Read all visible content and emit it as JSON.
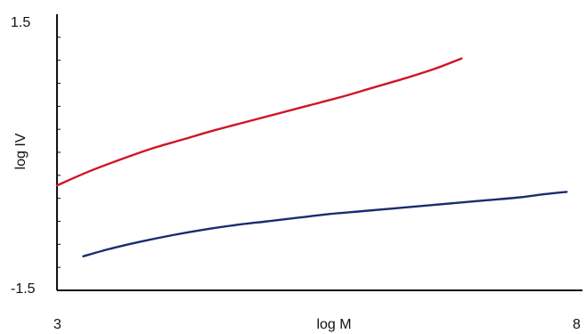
{
  "chart_data": {
    "type": "line",
    "xlabel": "log M",
    "ylabel": "log IV",
    "xlim": [
      3,
      8
    ],
    "ylim": [
      -1.5,
      1.5
    ],
    "tick_labels": {
      "x_min": "3",
      "x_max": "8",
      "y_min": "-1.5",
      "y_max": "1.5"
    },
    "y_minor_tick_step": 0.25,
    "grid": false,
    "series": [
      {
        "color": "#d01427",
        "x": [
          3.0,
          3.3,
          3.6,
          3.9,
          4.2,
          4.5,
          4.8,
          5.1,
          5.4,
          5.7,
          6.0,
          6.3,
          6.6,
          6.85
        ],
        "y": [
          -0.36,
          -0.21,
          -0.08,
          0.04,
          0.14,
          0.24,
          0.33,
          0.42,
          0.51,
          0.6,
          0.7,
          0.8,
          0.91,
          1.02
        ]
      },
      {
        "color": "#172d6e",
        "x": [
          3.25,
          3.5,
          3.8,
          4.1,
          4.4,
          4.7,
          5.0,
          5.3,
          5.6,
          5.9,
          6.2,
          6.5,
          6.8,
          7.1,
          7.4,
          7.6,
          7.85
        ],
        "y": [
          -1.13,
          -1.05,
          -0.97,
          -0.9,
          -0.84,
          -0.79,
          -0.75,
          -0.71,
          -0.67,
          -0.64,
          -0.61,
          -0.58,
          -0.55,
          -0.52,
          -0.49,
          -0.46,
          -0.43
        ]
      }
    ]
  }
}
